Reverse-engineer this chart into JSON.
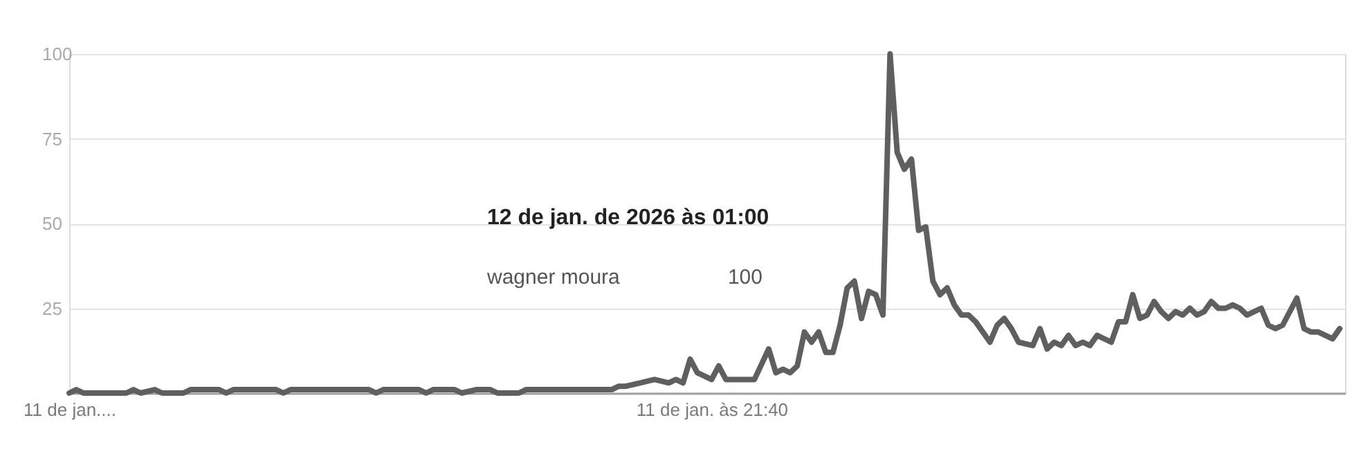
{
  "chart_data": {
    "type": "line",
    "x": [
      "2026-01-11T09:40",
      "2026-01-11T09:48",
      "2026-01-11T09:56",
      "2026-01-11T10:44",
      "2026-01-11T10:52",
      "2026-01-11T11:00",
      "2026-01-11T11:16",
      "2026-01-11T11:24",
      "2026-01-11T11:48",
      "2026-01-11T11:56",
      "2026-01-11T12:28",
      "2026-01-11T12:36",
      "2026-01-11T12:44",
      "2026-01-11T13:32",
      "2026-01-11T13:40",
      "2026-01-11T13:48",
      "2026-01-11T15:16",
      "2026-01-11T15:24",
      "2026-01-11T15:32",
      "2026-01-11T16:12",
      "2026-01-11T16:20",
      "2026-01-11T16:28",
      "2026-01-11T16:52",
      "2026-01-11T17:00",
      "2026-01-11T17:16",
      "2026-01-11T17:32",
      "2026-01-11T17:40",
      "2026-01-11T18:04",
      "2026-01-11T18:12",
      "2026-01-11T19:48",
      "2026-01-11T19:56",
      "2026-01-11T20:04",
      "2026-01-11T20:20",
      "2026-01-11T20:36",
      "2026-01-11T20:52",
      "2026-01-11T21:00",
      "2026-01-11T21:08",
      "2026-01-11T21:16",
      "2026-01-11T21:24",
      "2026-01-11T21:40",
      "2026-01-11T21:48",
      "2026-01-11T21:56",
      "2026-01-11T22:28",
      "2026-01-11T22:44",
      "2026-01-11T22:52",
      "2026-01-11T23:00",
      "2026-01-11T23:08",
      "2026-01-11T23:16",
      "2026-01-11T23:24",
      "2026-01-11T23:32",
      "2026-01-11T23:40",
      "2026-01-11T23:48",
      "2026-01-11T23:56",
      "2026-01-12T00:04",
      "2026-01-12T00:12",
      "2026-01-12T00:20",
      "2026-01-12T00:28",
      "2026-01-12T00:36",
      "2026-01-12T00:44",
      "2026-01-12T00:52",
      "2026-01-12T01:00",
      "2026-01-12T01:08",
      "2026-01-12T01:16",
      "2026-01-12T01:24",
      "2026-01-12T01:32",
      "2026-01-12T01:40",
      "2026-01-12T01:48",
      "2026-01-12T01:56",
      "2026-01-12T02:04",
      "2026-01-12T02:12",
      "2026-01-12T02:20",
      "2026-01-12T02:28",
      "2026-01-12T02:36",
      "2026-01-12T02:52",
      "2026-01-12T03:00",
      "2026-01-12T03:08",
      "2026-01-12T03:16",
      "2026-01-12T03:24",
      "2026-01-12T03:40",
      "2026-01-12T03:48",
      "2026-01-12T03:56",
      "2026-01-12T04:04",
      "2026-01-12T04:12",
      "2026-01-12T04:20",
      "2026-01-12T04:28",
      "2026-01-12T04:36",
      "2026-01-12T04:44",
      "2026-01-12T04:52",
      "2026-01-12T05:08",
      "2026-01-12T05:16",
      "2026-01-12T05:24",
      "2026-01-12T05:32",
      "2026-01-12T05:40",
      "2026-01-12T05:48",
      "2026-01-12T05:56",
      "2026-01-12T06:04",
      "2026-01-12T06:12",
      "2026-01-12T06:20",
      "2026-01-12T06:28",
      "2026-01-12T06:36",
      "2026-01-12T06:44",
      "2026-01-12T06:52",
      "2026-01-12T07:00",
      "2026-01-12T07:08",
      "2026-01-12T07:16",
      "2026-01-12T07:24",
      "2026-01-12T07:32",
      "2026-01-12T07:40",
      "2026-01-12T07:56",
      "2026-01-12T08:04",
      "2026-01-12T08:12",
      "2026-01-12T08:20",
      "2026-01-12T08:36",
      "2026-01-12T08:44",
      "2026-01-12T08:52",
      "2026-01-12T09:00",
      "2026-01-12T09:16",
      "2026-01-12T09:24"
    ],
    "series": [
      {
        "name": "wagner moura",
        "color": "#5f5f5f",
        "values": [
          0,
          1,
          0,
          0,
          1,
          0,
          1,
          0,
          0,
          1,
          1,
          0,
          1,
          1,
          0,
          1,
          1,
          0,
          1,
          1,
          0,
          1,
          1,
          0,
          1,
          1,
          0,
          0,
          1,
          1,
          2,
          2,
          3,
          4,
          3,
          4,
          3,
          10,
          6,
          4,
          8,
          4,
          4,
          13,
          6,
          7,
          6,
          8,
          18,
          15,
          18,
          12,
          12,
          20,
          31,
          33,
          22,
          30,
          29,
          23,
          100,
          71,
          66,
          69,
          48,
          49,
          33,
          29,
          31,
          26,
          23,
          23,
          21,
          15,
          20,
          22,
          19,
          15,
          14,
          19,
          13,
          15,
          14,
          17,
          14,
          15,
          14,
          17,
          15,
          21,
          21,
          29,
          22,
          23,
          27,
          24,
          22,
          24,
          23,
          25,
          23,
          24,
          27,
          25,
          25,
          26,
          25,
          23,
          25,
          20,
          19,
          20,
          28,
          19,
          18,
          18,
          16,
          19
        ]
      }
    ],
    "xlim": [
      "2026-01-11T09:40",
      "2026-01-12T09:30"
    ],
    "xticks": [
      {
        "value": "2026-01-11T09:40",
        "label": "11 de jan...."
      },
      {
        "value": "2026-01-11T21:40",
        "label": "11 de jan. às 21:40"
      }
    ],
    "ylim": [
      0,
      100
    ],
    "yticks": [
      25,
      50,
      75,
      100
    ],
    "grid": "y",
    "legend": false,
    "marker": "none",
    "line_style": "solid",
    "annotations": [
      "12 de jan. de 2026 às 01:00",
      "100"
    ]
  }
}
